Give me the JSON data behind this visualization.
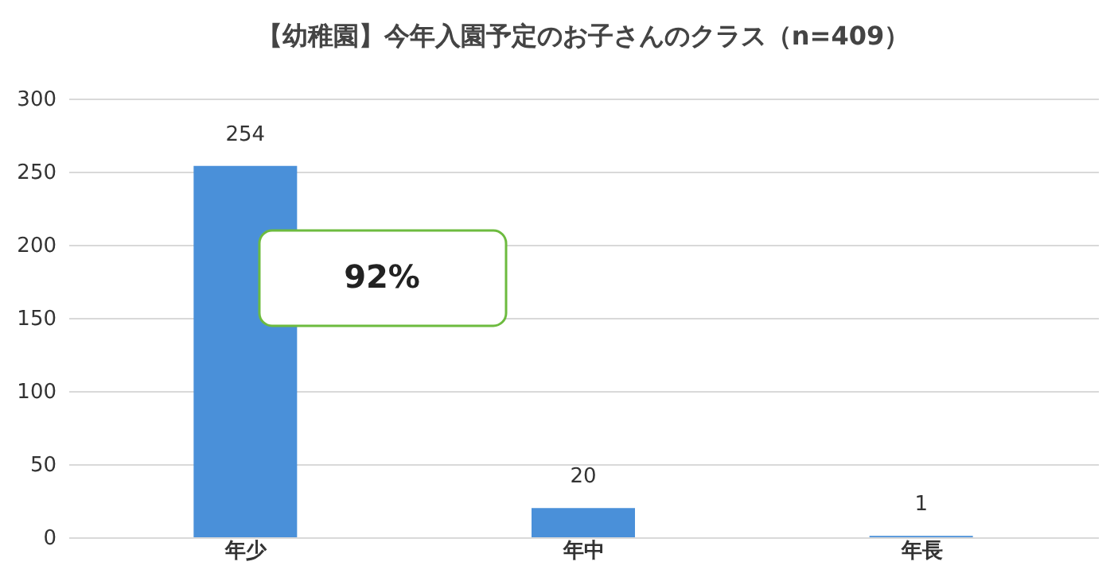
{
  "chart_data": {
    "type": "bar",
    "title": "【幼稚園】今年入園予定のお子さんのクラス（n=409）",
    "categories": [
      "年少",
      "年中",
      "年長"
    ],
    "values": [
      254,
      20,
      1
    ],
    "color": "#4a90d9",
    "ylim": [
      0,
      300
    ],
    "yticks": [
      0,
      50,
      100,
      150,
      200,
      250,
      300
    ],
    "grid": "y",
    "data_labels": true,
    "annotations": [
      "92%"
    ]
  }
}
